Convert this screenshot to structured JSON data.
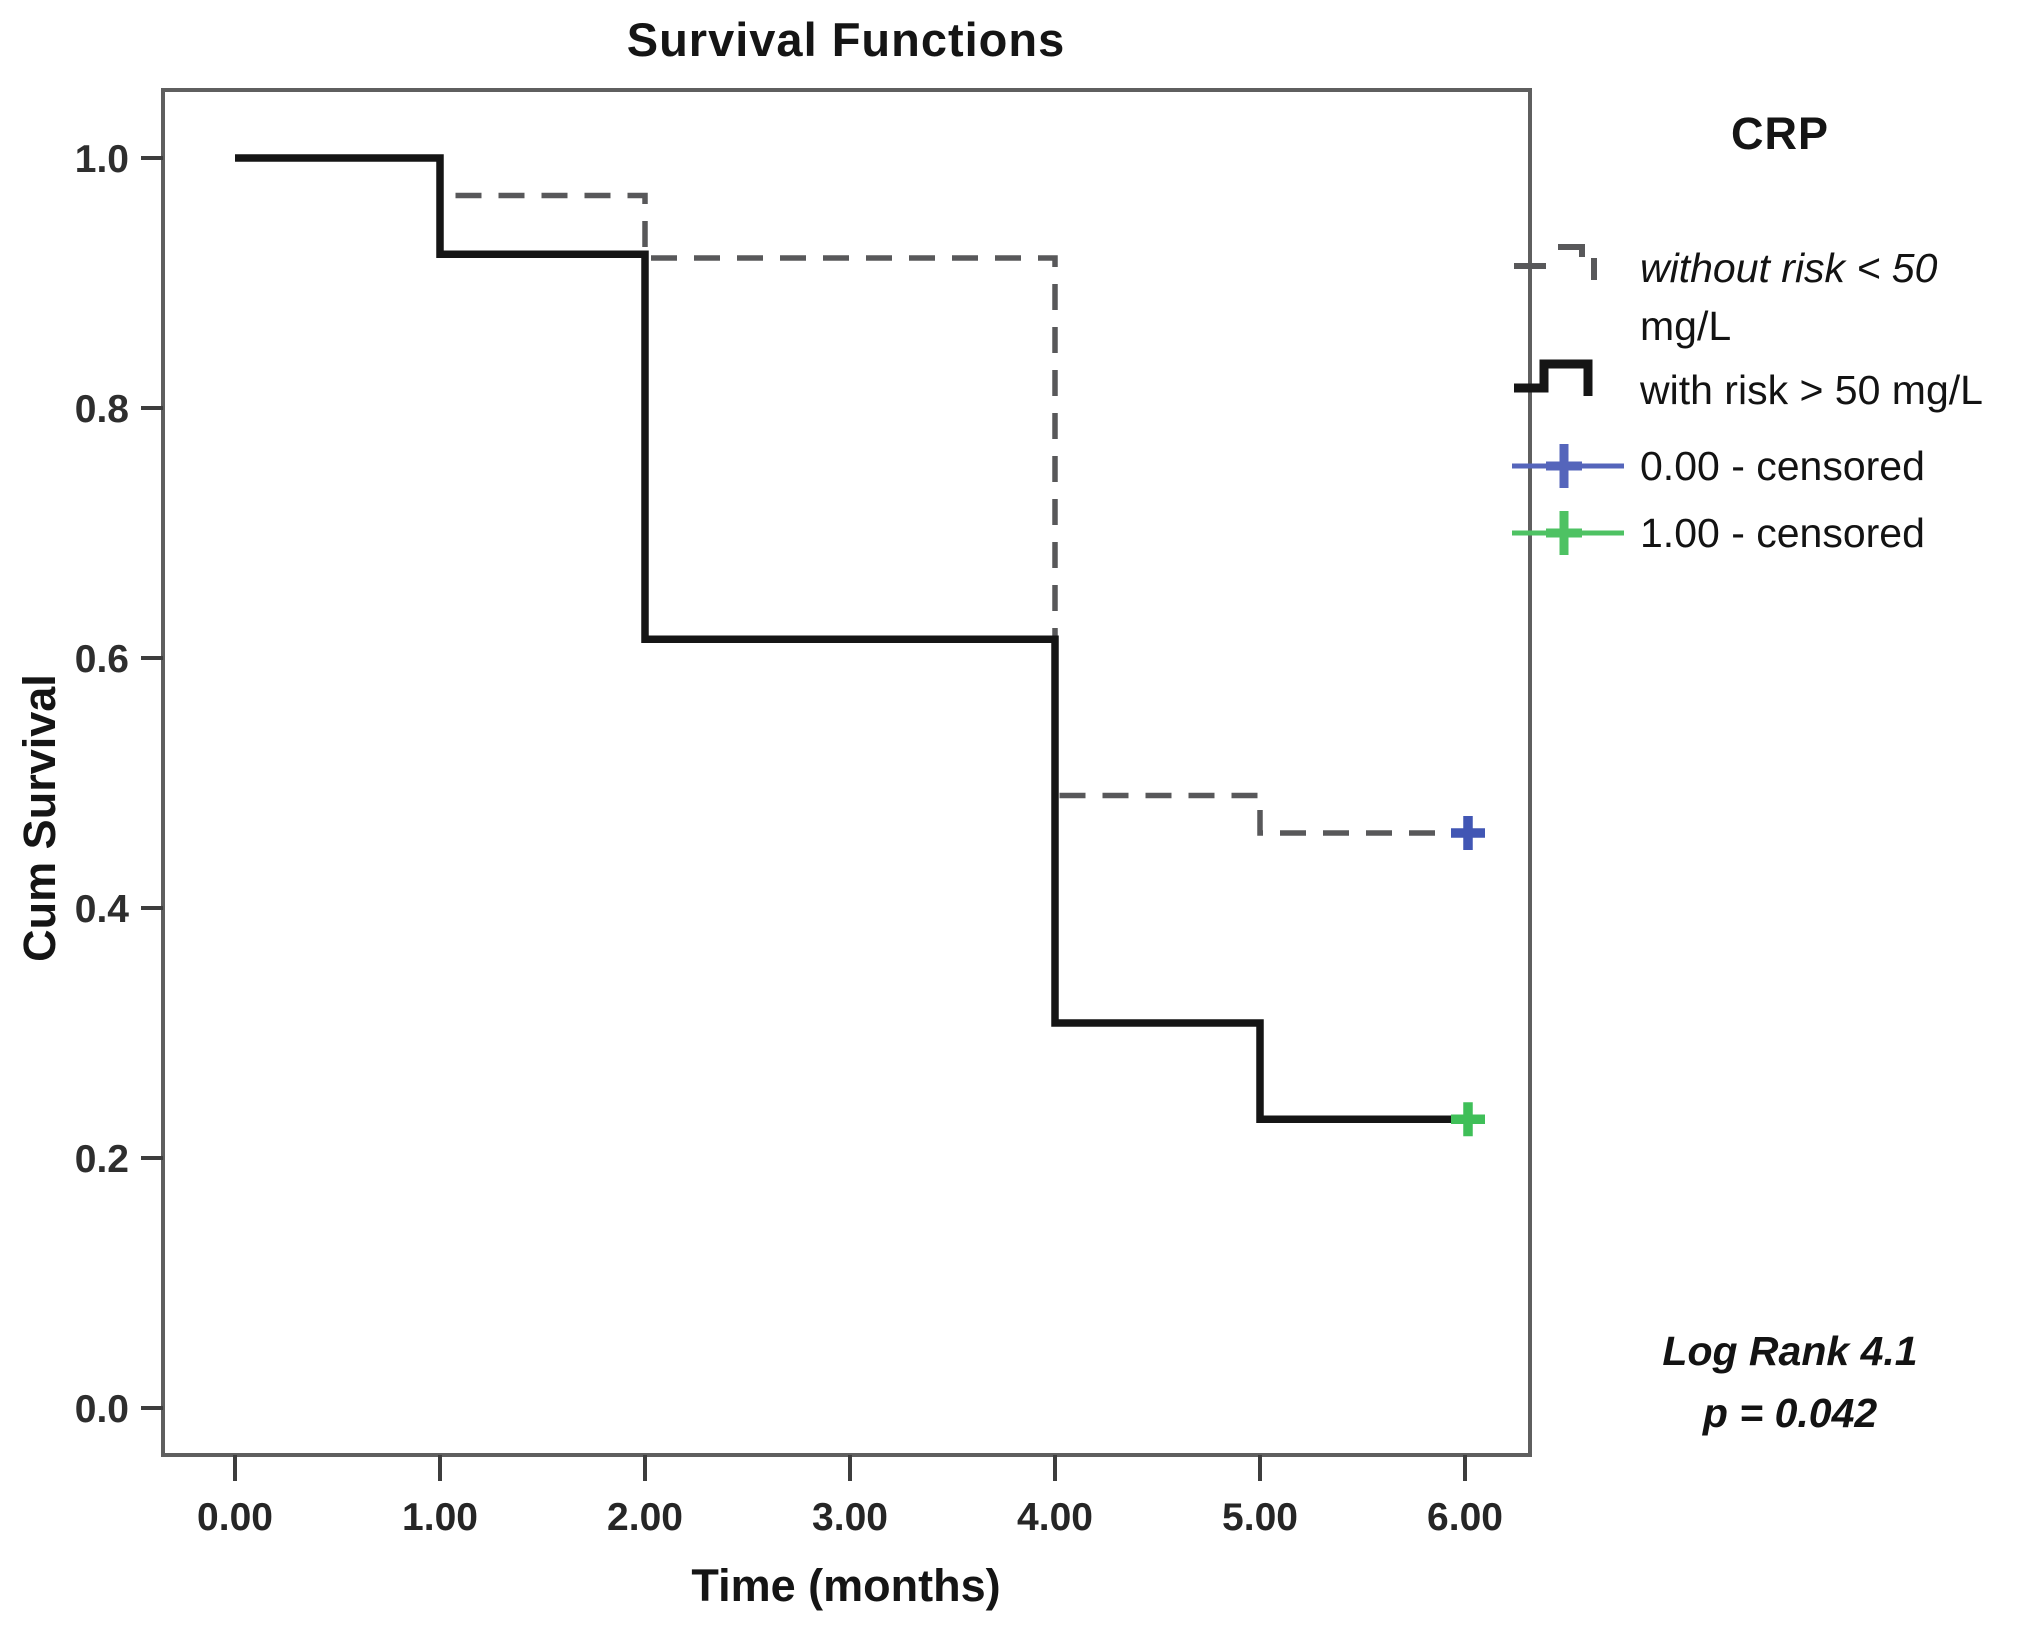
{
  "title": "Survival Functions",
  "legend": {
    "title": "CRP",
    "entries": [
      {
        "line1": "without risk < 50",
        "line2": "mg/L",
        "style": "dashed",
        "color": "#58585a"
      },
      {
        "label": "with risk > 50 mg/L",
        "style": "solid",
        "color": "#151515"
      },
      {
        "label": "0.00 - censored",
        "style": "censored",
        "color": "#5565bb"
      },
      {
        "label": "1.00 - censored",
        "style": "censored",
        "color": "#4ec263"
      }
    ]
  },
  "annotation": {
    "line1": "Log Rank 4.1",
    "line2": "p = 0.042"
  },
  "chart_data": {
    "type": "line",
    "subtype": "kaplan-meier-step",
    "title": "Survival Functions",
    "xlabel": "Time (months)",
    "ylabel": "Cum Survival",
    "x_tick_labels": [
      "0.00",
      "1.00",
      "2.00",
      "3.00",
      "4.00",
      "5.00",
      "6.00"
    ],
    "x_tick_values": [
      0,
      1,
      2,
      3,
      4,
      5,
      6
    ],
    "y_tick_labels": [
      "1.0",
      "0.8",
      "0.6",
      "0.4",
      "0.2",
      "0.0"
    ],
    "y_tick_values": [
      1.0,
      0.8,
      0.6,
      0.4,
      0.2,
      0.0
    ],
    "xlim": [
      -0.35,
      6.32
    ],
    "ylim": [
      -0.038,
      1.054
    ],
    "grid": false,
    "legend_position": "right",
    "series": [
      {
        "name": "without risk < 50 mg/L",
        "group": "CRP < 50 mg/L",
        "style": "dashed",
        "color": "#58585a",
        "steps": [
          [
            0,
            1.0
          ],
          [
            1,
            0.97
          ],
          [
            2,
            0.92
          ],
          [
            4,
            0.49
          ],
          [
            5,
            0.46
          ],
          [
            6,
            0.46
          ]
        ],
        "censored_points": [
          {
            "x": 6,
            "y": 0.46,
            "marker_color": "#4156b4"
          }
        ]
      },
      {
        "name": "with risk > 50 mg/L",
        "group": "CRP > 50 mg/L",
        "style": "solid",
        "color": "#151515",
        "steps": [
          [
            0,
            1.0
          ],
          [
            1,
            0.923
          ],
          [
            2,
            0.615
          ],
          [
            4,
            0.308
          ],
          [
            5,
            0.231
          ],
          [
            6,
            0.231
          ]
        ],
        "censored_points": [
          {
            "x": 6,
            "y": 0.231,
            "marker_color": "#3fbf58"
          }
        ]
      }
    ],
    "stats_annotation": {
      "log_rank": "4.1",
      "p_value": "0.042"
    }
  }
}
